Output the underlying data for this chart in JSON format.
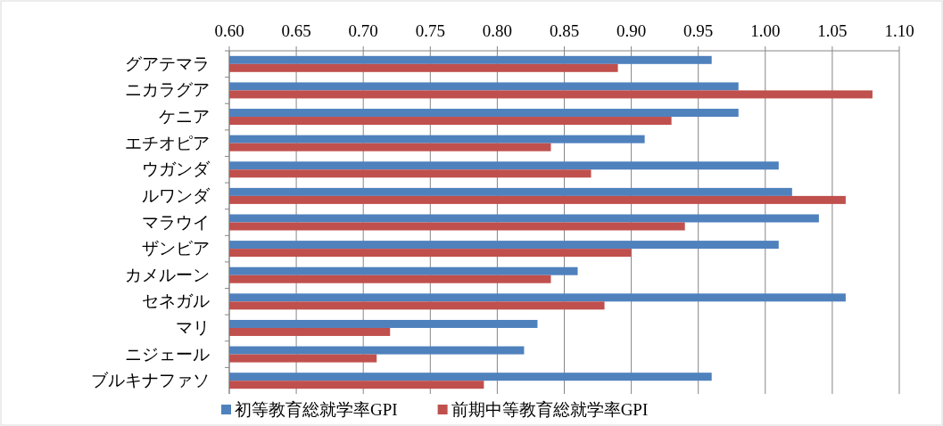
{
  "chart_data": {
    "type": "bar",
    "orientation": "horizontal",
    "categories": [
      "グアテマラ",
      "ニカラグア",
      "ケニア",
      "エチオピア",
      "ウガンダ",
      "ルワンダ",
      "マラウイ",
      "ザンビア",
      "カメルーン",
      "セネガル",
      "マリ",
      "ニジェール",
      "ブルキナファソ"
    ],
    "series": [
      {
        "name": "初等教育総就学率GPI",
        "color": "#4f81bd",
        "values": [
          0.96,
          0.98,
          0.98,
          0.91,
          1.01,
          1.02,
          1.04,
          1.01,
          0.86,
          1.06,
          0.83,
          0.82,
          0.96
        ]
      },
      {
        "name": "前期中等教育総就学率GPI",
        "color": "#c0504d",
        "values": [
          0.89,
          1.08,
          0.93,
          0.84,
          0.87,
          1.06,
          0.94,
          0.9,
          0.84,
          0.88,
          0.72,
          0.71,
          0.79
        ]
      }
    ],
    "xlim": [
      0.6,
      1.1
    ],
    "xticks": [
      {
        "value": 0.6,
        "label": "0.60"
      },
      0.65,
      {
        "value": 0.7,
        "label": "0.70"
      },
      0.75,
      {
        "value": 0.8,
        "label": "0.80"
      },
      0.85,
      {
        "value": 0.9,
        "label": "0.90"
      },
      0.95,
      {
        "value": 1.0,
        "label": "1.00"
      },
      1.05,
      {
        "value": 1.1,
        "label": "1.10"
      }
    ],
    "grid": "x",
    "legend": "bottom"
  }
}
